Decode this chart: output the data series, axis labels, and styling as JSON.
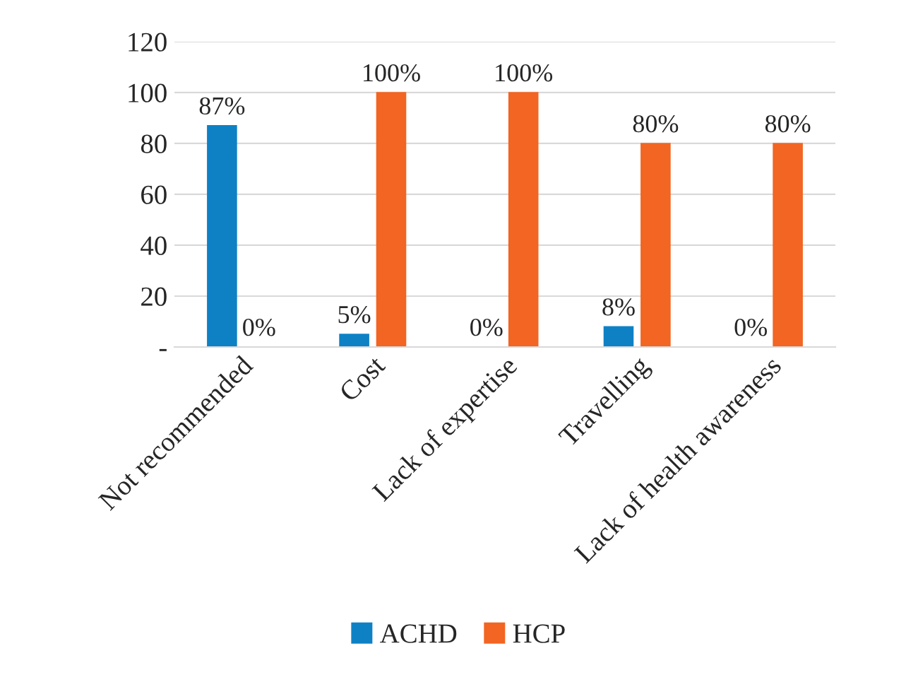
{
  "chart_data": {
    "type": "bar",
    "categories": [
      "Not recommended",
      "Cost",
      "Lack of expertise",
      "Travelling",
      "Lack of health awareness"
    ],
    "series": [
      {
        "name": "ACHD",
        "color": "#0e81c5",
        "values": [
          87,
          5,
          0,
          8,
          0
        ],
        "value_labels": [
          "87%",
          "5%",
          "0%",
          "8%",
          "0%"
        ]
      },
      {
        "name": "HCP",
        "color": "#f26522",
        "values": [
          0,
          100,
          100,
          80,
          80
        ],
        "value_labels": [
          "0%",
          "100%",
          "100%",
          "80%",
          "80%"
        ]
      }
    ],
    "ylim": [
      0,
      120
    ],
    "yticks": [
      {
        "value": 0,
        "label": "-"
      },
      20,
      40,
      60,
      80,
      100,
      120
    ],
    "grid": "y",
    "legend": "bottom"
  }
}
